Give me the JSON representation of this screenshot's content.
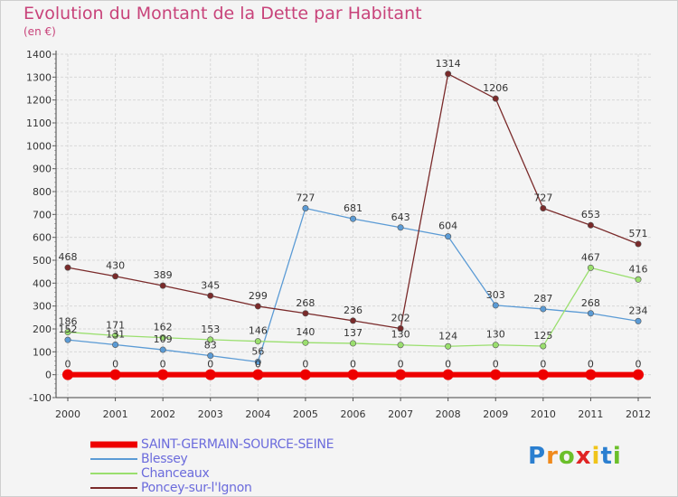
{
  "chart_data": {
    "type": "line",
    "title": "Evolution du Montant de la Dette par Habitant",
    "ylabel": "(en €)",
    "xlabel": "",
    "x": [
      "2000",
      "2001",
      "2002",
      "2003",
      "2004",
      "2005",
      "2006",
      "2007",
      "2008",
      "2009",
      "2010",
      "2011",
      "2012"
    ],
    "ylim": [
      -100,
      1400
    ],
    "yticks": [
      -100,
      0,
      100,
      200,
      300,
      400,
      500,
      600,
      700,
      800,
      900,
      1000,
      1100,
      1200,
      1300,
      1400
    ],
    "grid": true,
    "legend_position": "bottom-left",
    "series": [
      {
        "name": "SAINT-GERMAIN-SOURCE-SEINE",
        "color": "#ee0000",
        "values": [
          0,
          0,
          0,
          0,
          0,
          0,
          0,
          0,
          0,
          0,
          0,
          0,
          0
        ]
      },
      {
        "name": "Blessey",
        "color": "#5b9bd5",
        "values": [
          152,
          131,
          109,
          83,
          56,
          727,
          681,
          643,
          604,
          303,
          287,
          268,
          234
        ]
      },
      {
        "name": "Chanceaux",
        "color": "#9adf6e",
        "values": [
          186,
          171,
          162,
          153,
          146,
          140,
          137,
          130,
          124,
          130,
          125,
          467,
          416
        ]
      },
      {
        "name": "Poncey-sur-l'Ignon",
        "color": "#7a2a2a",
        "values": [
          468,
          430,
          389,
          345,
          299,
          268,
          236,
          202,
          1314,
          1206,
          727,
          653,
          571
        ]
      }
    ]
  },
  "logo": {
    "letters": [
      "P",
      "r",
      "o",
      "x",
      "i",
      "t",
      "i"
    ],
    "colors": [
      "#2b7fd0",
      "#f08a1c",
      "#6bbf2a",
      "#e02424",
      "#f0c419",
      "#2b7fd0",
      "#6bbf2a"
    ]
  }
}
